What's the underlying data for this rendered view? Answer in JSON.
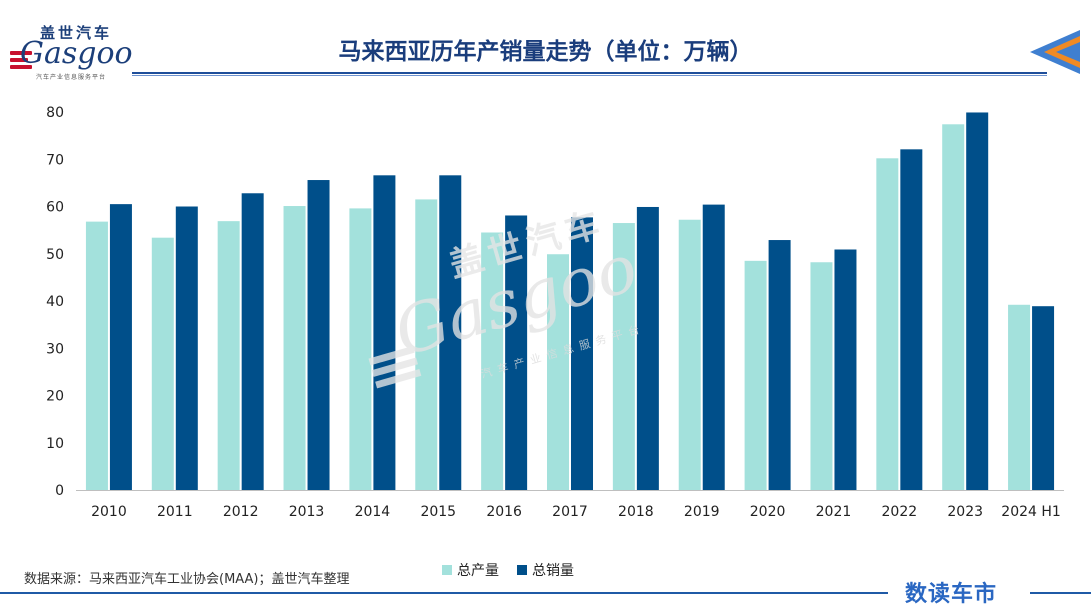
{
  "logo": {
    "cn": "盖世汽车",
    "en": "Gasgoo",
    "sub": "汽车产业信息服务平台"
  },
  "header": {
    "title": "马来西亚历年产销量走势（单位：万辆）"
  },
  "watermark": {
    "cn": "盖世汽车",
    "en": "Gasgoo",
    "sub": "汽车产业信息服务平台"
  },
  "colors": {
    "production": "#a3e1dc",
    "sales": "#004f8a",
    "title": "#1a3d7c",
    "accent_blue": "#1f5aa6"
  },
  "chart_data": {
    "type": "bar",
    "title": "马来西亚历年产销量走势（单位：万辆）",
    "categories": [
      "2010",
      "2011",
      "2012",
      "2013",
      "2014",
      "2015",
      "2016",
      "2017",
      "2018",
      "2019",
      "2020",
      "2021",
      "2022",
      "2023",
      "2024 H1"
    ],
    "series": [
      {
        "name": "总产量",
        "values": [
          56.8,
          53.4,
          56.9,
          60.1,
          59.6,
          61.5,
          54.5,
          49.9,
          56.5,
          57.2,
          48.5,
          48.2,
          70.2,
          77.4,
          39.2
        ]
      },
      {
        "name": "总销量",
        "values": [
          60.5,
          60.0,
          62.8,
          65.6,
          66.6,
          66.6,
          58.1,
          57.7,
          59.9,
          60.4,
          52.9,
          50.9,
          72.1,
          79.9,
          38.9
        ]
      }
    ],
    "ylim": [
      0,
      80
    ],
    "yticks": [
      "0",
      "10",
      "20",
      "30",
      "40",
      "50",
      "60",
      "70",
      "80"
    ],
    "grid": false,
    "legend": "bottom"
  },
  "legend": {
    "items": [
      "总产量",
      "总销量"
    ]
  },
  "footer": {
    "source": "数据来源：马来西亚汽车工业协会(MAA)；盖世汽车整理",
    "brand": "数读车市"
  }
}
